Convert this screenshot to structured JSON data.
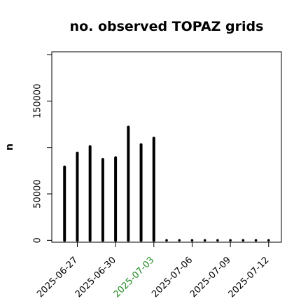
{
  "chart_data": {
    "type": "bar",
    "title": "no. observed TOPAZ grids",
    "xlabel": "",
    "ylabel": "n",
    "x": [
      "2025-06-26",
      "2025-06-27",
      "2025-06-28",
      "2025-06-29",
      "2025-06-30",
      "2025-07-01",
      "2025-07-02",
      "2025-07-03",
      "2025-07-04",
      "2025-07-05",
      "2025-07-06",
      "2025-07-07",
      "2025-07-08",
      "2025-07-09",
      "2025-07-10",
      "2025-07-11",
      "2025-07-12"
    ],
    "values": [
      79000,
      94000,
      101000,
      87000,
      89000,
      122000,
      103000,
      110000,
      0,
      0,
      0,
      0,
      0,
      0,
      0,
      0,
      0
    ],
    "ylim": [
      -2000,
      203000
    ],
    "yticks": [
      {
        "value": 0,
        "label": "0"
      },
      {
        "value": 50000,
        "label": "50000"
      },
      {
        "value": 100000,
        "label": ""
      },
      {
        "value": 150000,
        "label": "150000"
      },
      {
        "value": 200000,
        "label": ""
      }
    ],
    "xticks": [
      {
        "date": "2025-06-27",
        "label": "2025-06-27",
        "color": "#000000"
      },
      {
        "date": "2025-06-30",
        "label": "2025-06-30",
        "color": "#000000"
      },
      {
        "date": "2025-07-03",
        "label": "2025-07-03",
        "color": "#228B22"
      },
      {
        "date": "2025-07-06",
        "label": "2025-07-06",
        "color": "#000000"
      },
      {
        "date": "2025-07-09",
        "label": "2025-07-09",
        "color": "#000000"
      },
      {
        "date": "2025-07-12",
        "label": "2025-07-12",
        "color": "#000000"
      }
    ],
    "xlim": [
      "2025-06-25",
      "2025-07-13"
    ],
    "grid": false,
    "bar_color": "#000000"
  }
}
